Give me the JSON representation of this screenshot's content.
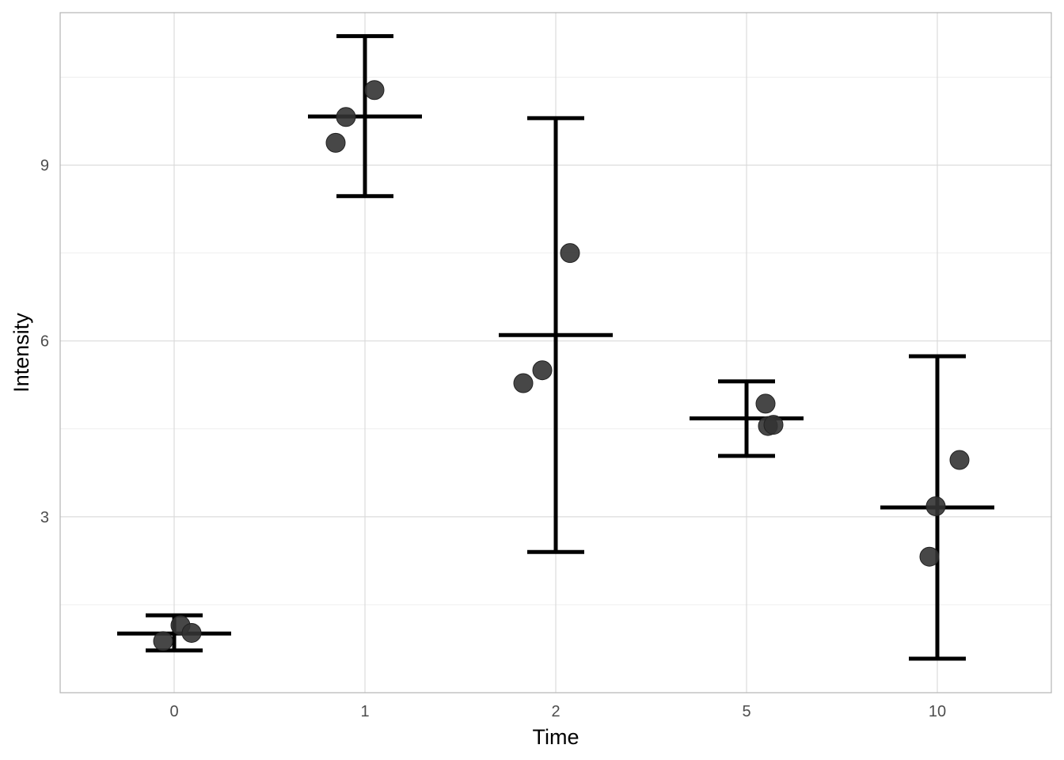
{
  "chart_data": {
    "type": "scatter",
    "xlabel": "Time",
    "ylabel": "Intensity",
    "categories": [
      "0",
      "1",
      "2",
      "5",
      "10"
    ],
    "ylim": [
      0.0,
      11.6
    ],
    "yticks": [
      3,
      6,
      9
    ],
    "grid": true,
    "points": [
      {
        "category": "0",
        "values": [
          0.88,
          1.15,
          1.02
        ]
      },
      {
        "category": "1",
        "values": [
          9.38,
          9.82,
          10.28
        ]
      },
      {
        "category": "2",
        "values": [
          5.28,
          5.5,
          7.5
        ]
      },
      {
        "category": "5",
        "values": [
          4.93,
          4.55,
          4.57
        ]
      },
      {
        "category": "10",
        "values": [
          2.32,
          3.18,
          3.97
        ]
      }
    ],
    "summary": [
      {
        "category": "0",
        "mean": 1.01,
        "lower": 0.72,
        "upper": 1.32
      },
      {
        "category": "1",
        "mean": 9.83,
        "lower": 8.47,
        "upper": 11.2
      },
      {
        "category": "2",
        "mean": 6.1,
        "lower": 2.4,
        "upper": 9.8
      },
      {
        "category": "5",
        "mean": 4.68,
        "lower": 4.04,
        "upper": 5.31
      },
      {
        "category": "10",
        "mean": 3.16,
        "lower": 0.58,
        "upper": 5.74
      }
    ],
    "colors": {
      "points": "#333333",
      "errorbar": "#000000",
      "grid": "#d9d9d9",
      "panel_border": "#b3b3b3"
    }
  }
}
